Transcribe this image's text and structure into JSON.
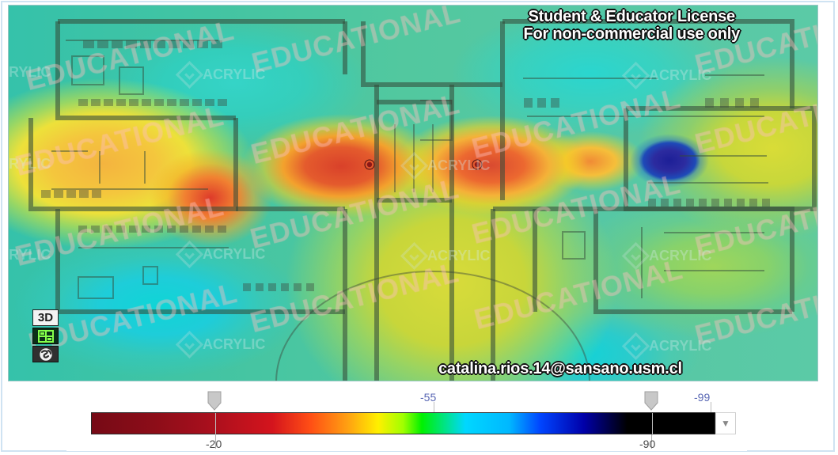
{
  "license": {
    "line1": "Student & Educator License",
    "line2": "For non-commercial use only"
  },
  "user_email": "catalina.rios.14@sansano.usm.cl",
  "watermark": {
    "educational": "EDUCATIONAL",
    "acrylic": "ACRYLIC",
    "acrylic_partial": "RYLIC"
  },
  "toolbar": {
    "view_3d_label": "3D",
    "layout_icon": "floorplan-grid-icon",
    "globe_icon": "globe-icon"
  },
  "signal_scale": {
    "labels_top": [
      "-55",
      "-99"
    ],
    "labels_bottom": [
      "-20",
      "-90"
    ],
    "dropdown_icon": "chevron-down-icon",
    "colors": {
      "strong": "#760a16",
      "mid_red": "#d4141d",
      "orange": "#ff9f12",
      "yellow": "#fff000",
      "green": "#00f100",
      "cyan": "#00d7ff",
      "blue": "#0045ff",
      "navy": "#0000a9",
      "black": "#000000"
    }
  }
}
